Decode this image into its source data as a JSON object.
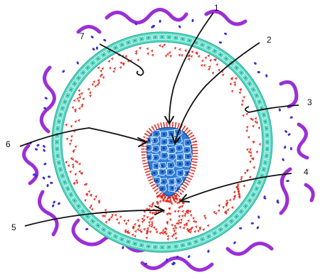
{
  "diagram": {
    "labels": [
      "1",
      "2",
      "3",
      "4",
      "5",
      "6",
      "7"
    ],
    "colors": {
      "outer_wavy": "#9b2fd6",
      "outer_dots": "#3b2fd0",
      "ring_fill": "#57d6c2",
      "ring_cells": "#e9fbf8",
      "red_dots": "#e2291e",
      "core_fill": "#2f7fd8",
      "core_cells": "#e7f2ff",
      "core_nuclei": "#14359a",
      "pointer": "#111111"
    }
  }
}
